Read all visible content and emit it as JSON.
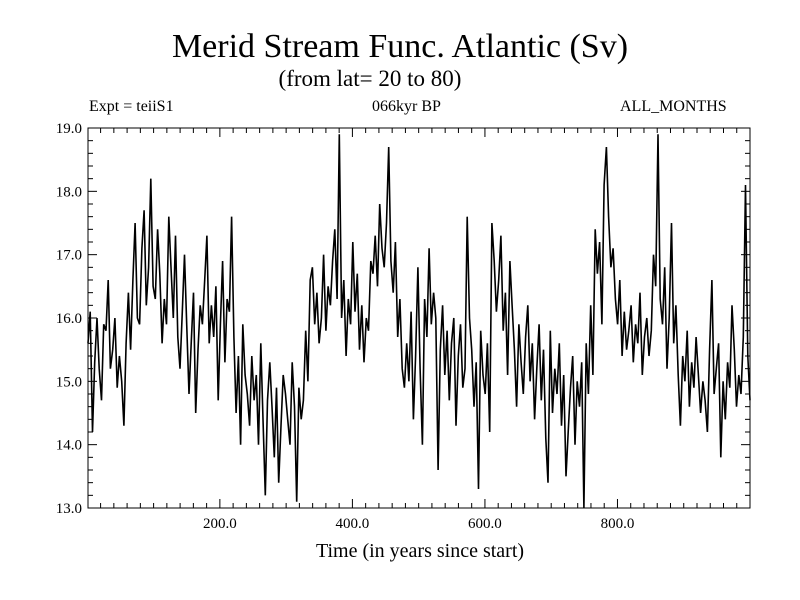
{
  "chart_data": {
    "type": "line",
    "title": "Merid Stream Func. Atlantic (Sv)",
    "subtitle": "(from lat= 20 to 80)",
    "annotation_left": "Expt = teiiS1",
    "annotation_center": "066kyr BP",
    "annotation_right": "ALL_MONTHS",
    "xlabel": "Time (in years since start)",
    "ylabel": "",
    "xlim": [
      1,
      1000
    ],
    "ylim": [
      13.0,
      19.0
    ],
    "x_ticks": [
      200,
      400,
      600,
      800
    ],
    "x_tick_labels": [
      "200.0",
      "400.0",
      "600.0",
      "800.0"
    ],
    "y_ticks": [
      13,
      14,
      15,
      16,
      17,
      18,
      19
    ],
    "y_tick_labels": [
      "13.0",
      "14.0",
      "15.0",
      "16.0",
      "17.0",
      "18.0",
      "19.0"
    ],
    "grid": false,
    "line_color": "#000000",
    "series": [
      {
        "values": [
          15.6,
          16.1,
          14.2,
          15.3,
          16.0,
          15.2,
          14.7,
          15.9,
          15.8,
          16.6,
          15.2,
          15.5,
          16.0,
          14.9,
          15.4,
          15.0,
          14.3,
          15.6,
          16.4,
          15.5,
          16.6,
          17.5,
          16.0,
          15.9,
          17.1,
          17.7,
          16.2,
          16.8,
          18.2,
          16.5,
          16.3,
          17.4,
          16.7,
          15.6,
          16.3,
          15.9,
          17.6,
          16.8,
          16.0,
          17.3,
          15.7,
          15.2,
          16.1,
          17.0,
          15.9,
          14.8,
          15.6,
          16.4,
          14.5,
          15.5,
          16.2,
          15.9,
          16.6,
          17.3,
          15.6,
          16.2,
          15.7,
          16.5,
          14.7,
          15.9,
          16.9,
          15.3,
          16.3,
          16.1,
          17.6,
          15.7,
          14.5,
          15.4,
          14.0,
          15.9,
          15.1,
          14.8,
          14.3,
          15.4,
          14.7,
          15.1,
          14.0,
          15.6,
          14.4,
          13.2,
          14.7,
          15.3,
          14.6,
          13.8,
          14.9,
          13.4,
          14.3,
          15.1,
          14.8,
          14.4,
          14.0,
          15.3,
          14.6,
          13.1,
          14.9,
          14.4,
          14.7,
          15.8,
          15.0,
          16.6,
          16.8,
          15.9,
          16.4,
          15.6,
          16.0,
          17.0,
          15.8,
          16.5,
          16.2,
          16.9,
          17.4,
          16.3,
          18.9,
          16.0,
          16.6,
          15.4,
          16.3,
          15.9,
          17.2,
          16.1,
          16.7,
          15.5,
          16.2,
          15.3,
          16.0,
          15.8,
          16.9,
          16.7,
          17.3,
          16.5,
          17.8,
          17.1,
          16.8,
          17.5,
          18.7,
          16.9,
          16.4,
          17.2,
          15.7,
          16.3,
          15.2,
          14.9,
          15.6,
          15.0,
          16.1,
          14.4,
          15.4,
          16.8,
          15.2,
          14.0,
          16.3,
          15.7,
          17.1,
          15.9,
          16.4,
          16.0,
          13.6,
          15.5,
          16.2,
          15.1,
          15.8,
          14.7,
          15.6,
          16.0,
          14.3,
          15.4,
          15.9,
          14.9,
          15.2,
          17.6,
          16.0,
          15.5,
          14.6,
          15.3,
          13.3,
          15.8,
          15.1,
          14.8,
          15.6,
          14.2,
          17.5,
          16.9,
          16.1,
          16.6,
          17.3,
          15.8,
          16.4,
          15.1,
          16.9,
          16.2,
          15.5,
          14.6,
          15.9,
          15.3,
          14.8,
          15.7,
          16.2,
          15.0,
          15.6,
          14.4,
          15.2,
          15.9,
          14.7,
          15.5,
          14.1,
          13.4,
          15.8,
          14.5,
          15.2,
          14.8,
          15.6,
          14.3,
          15.1,
          13.5,
          14.2,
          14.9,
          15.4,
          14.0,
          15.0,
          14.6,
          15.3,
          13.0,
          15.6,
          14.8,
          16.2,
          15.1,
          17.4,
          16.7,
          17.2,
          15.9,
          18.1,
          18.7,
          17.6,
          16.8,
          17.1,
          16.3,
          15.9,
          16.6,
          15.4,
          16.1,
          15.5,
          15.8,
          16.2,
          15.3,
          15.9,
          15.6,
          16.4,
          15.1,
          15.7,
          16.0,
          15.4,
          15.8,
          17.0,
          16.5,
          18.9,
          16.3,
          15.9,
          16.8,
          15.2,
          16.0,
          17.5,
          15.6,
          16.2,
          15.1,
          14.3,
          15.4,
          15.0,
          15.8,
          14.6,
          15.3,
          14.9,
          15.7,
          15.1,
          14.5,
          15.0,
          14.7,
          14.2,
          15.5,
          16.6,
          14.8,
          15.2,
          15.6,
          13.8,
          15.0,
          14.4,
          15.3,
          14.9,
          16.2,
          15.5,
          14.6,
          15.1,
          14.8,
          15.7,
          18.1,
          15.4,
          14.7
        ]
      }
    ]
  }
}
